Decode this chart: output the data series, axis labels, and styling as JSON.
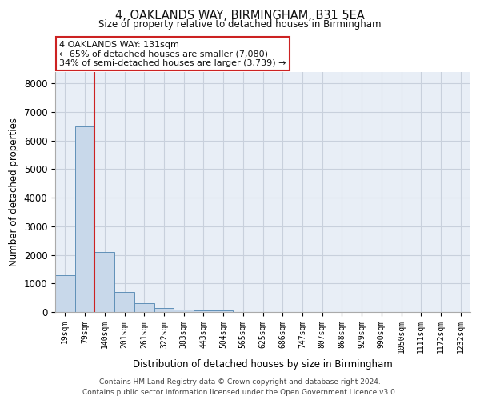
{
  "title": "4, OAKLANDS WAY, BIRMINGHAM, B31 5EA",
  "subtitle": "Size of property relative to detached houses in Birmingham",
  "xlabel": "Distribution of detached houses by size in Birmingham",
  "ylabel": "Number of detached properties",
  "bin_labels": [
    "19sqm",
    "79sqm",
    "140sqm",
    "201sqm",
    "261sqm",
    "322sqm",
    "383sqm",
    "443sqm",
    "504sqm",
    "565sqm",
    "625sqm",
    "686sqm",
    "747sqm",
    "807sqm",
    "868sqm",
    "929sqm",
    "990sqm",
    "1050sqm",
    "1111sqm",
    "1172sqm",
    "1232sqm"
  ],
  "bar_values": [
    1300,
    6500,
    2100,
    700,
    300,
    130,
    80,
    50,
    50,
    0,
    0,
    0,
    0,
    0,
    0,
    0,
    0,
    0,
    0,
    0,
    0
  ],
  "bar_color": "#c8d8ea",
  "bar_edge_color": "#6090b8",
  "property_line_bin": 2,
  "property_line_color": "#cc2222",
  "annotation_box_text": "4 OAKLANDS WAY: 131sqm\n← 65% of detached houses are smaller (7,080)\n34% of semi-detached houses are larger (3,739) →",
  "annotation_box_color": "#cc2222",
  "annotation_box_bg": "#ffffff",
  "ylim": [
    0,
    8400
  ],
  "yticks": [
    0,
    1000,
    2000,
    3000,
    4000,
    5000,
    6000,
    7000,
    8000
  ],
  "grid_color": "#c8d0dc",
  "bg_color": "#e8eef6",
  "footer_line1": "Contains HM Land Registry data © Crown copyright and database right 2024.",
  "footer_line2": "Contains public sector information licensed under the Open Government Licence v3.0."
}
